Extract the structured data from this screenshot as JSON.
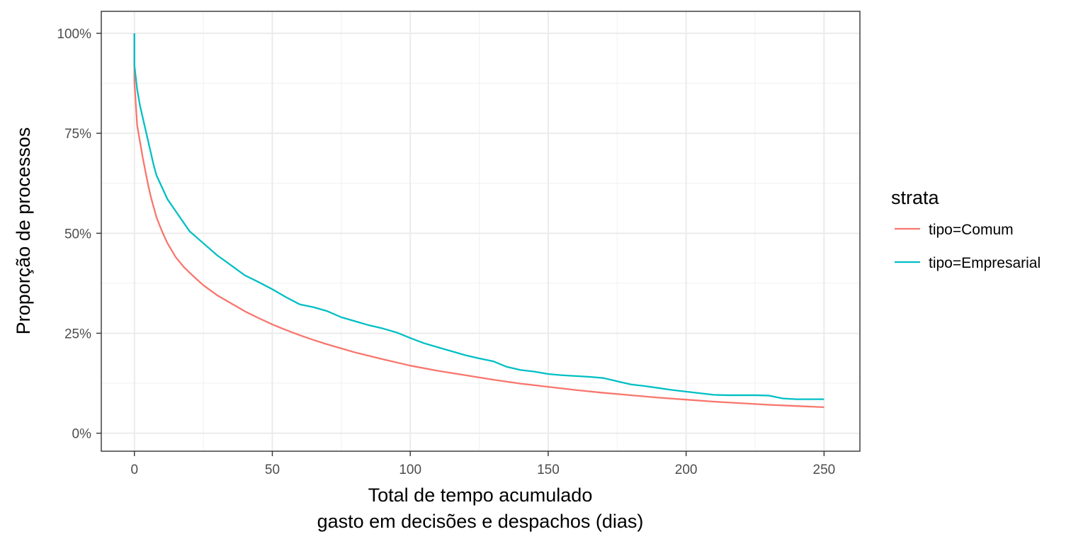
{
  "chart_data": {
    "type": "line",
    "xlabel": [
      "Total de tempo acumulado",
      "gasto em decisões e despachos (dias)"
    ],
    "ylabel": "Proporção de processos",
    "xlim": [
      -12,
      263
    ],
    "ylim": [
      -0.045,
      1.055
    ],
    "x_ticks": [
      0,
      50,
      100,
      150,
      200,
      250
    ],
    "x_tick_labels": [
      "0",
      "50",
      "100",
      "150",
      "200",
      "250"
    ],
    "y_ticks": [
      0,
      0.25,
      0.5,
      0.75,
      1.0
    ],
    "y_tick_labels": [
      "0%",
      "25%",
      "50%",
      "75%",
      "100%"
    ],
    "grid": true,
    "legend": {
      "title": "strata",
      "position": "right"
    },
    "series": [
      {
        "name": "tipo=Comum",
        "color": "#F8766D",
        "x": [
          0,
          0,
          1,
          2,
          3,
          4,
          5,
          6,
          7,
          8,
          10,
          12,
          15,
          18,
          21,
          25,
          30,
          35,
          40,
          45,
          50,
          55,
          60,
          65,
          70,
          75,
          80,
          90,
          100,
          110,
          120,
          130,
          140,
          150,
          160,
          170,
          180,
          190,
          200,
          210,
          220,
          230,
          240,
          250
        ],
        "y": [
          1.0,
          0.88,
          0.77,
          0.73,
          0.69,
          0.655,
          0.62,
          0.59,
          0.565,
          0.54,
          0.505,
          0.475,
          0.44,
          0.415,
          0.395,
          0.37,
          0.345,
          0.325,
          0.305,
          0.288,
          0.272,
          0.258,
          0.245,
          0.233,
          0.222,
          0.212,
          0.202,
          0.185,
          0.169,
          0.156,
          0.145,
          0.134,
          0.124,
          0.116,
          0.108,
          0.101,
          0.095,
          0.089,
          0.084,
          0.079,
          0.075,
          0.071,
          0.068,
          0.065
        ]
      },
      {
        "name": "tipo=Empresarial",
        "color": "#00BFC4",
        "x": [
          0,
          0,
          1,
          2,
          3,
          4,
          5,
          6,
          7,
          8,
          10,
          12,
          15,
          18,
          20,
          25,
          30,
          35,
          40,
          45,
          50,
          55,
          60,
          65,
          70,
          75,
          80,
          85,
          90,
          95,
          100,
          105,
          110,
          115,
          120,
          125,
          130,
          135,
          140,
          145,
          150,
          155,
          160,
          165,
          170,
          175,
          180,
          185,
          190,
          195,
          200,
          205,
          210,
          215,
          220,
          225,
          230,
          235,
          240,
          245,
          250
        ],
        "y": [
          1.0,
          0.92,
          0.86,
          0.82,
          0.79,
          0.76,
          0.73,
          0.7,
          0.67,
          0.645,
          0.615,
          0.585,
          0.555,
          0.525,
          0.505,
          0.475,
          0.445,
          0.42,
          0.395,
          0.378,
          0.36,
          0.34,
          0.322,
          0.315,
          0.305,
          0.29,
          0.28,
          0.27,
          0.262,
          0.252,
          0.238,
          0.225,
          0.215,
          0.205,
          0.195,
          0.187,
          0.18,
          0.166,
          0.158,
          0.154,
          0.148,
          0.145,
          0.143,
          0.141,
          0.138,
          0.13,
          0.122,
          0.118,
          0.113,
          0.108,
          0.104,
          0.1,
          0.096,
          0.095,
          0.095,
          0.095,
          0.094,
          0.087,
          0.085,
          0.085,
          0.085
        ]
      }
    ]
  }
}
